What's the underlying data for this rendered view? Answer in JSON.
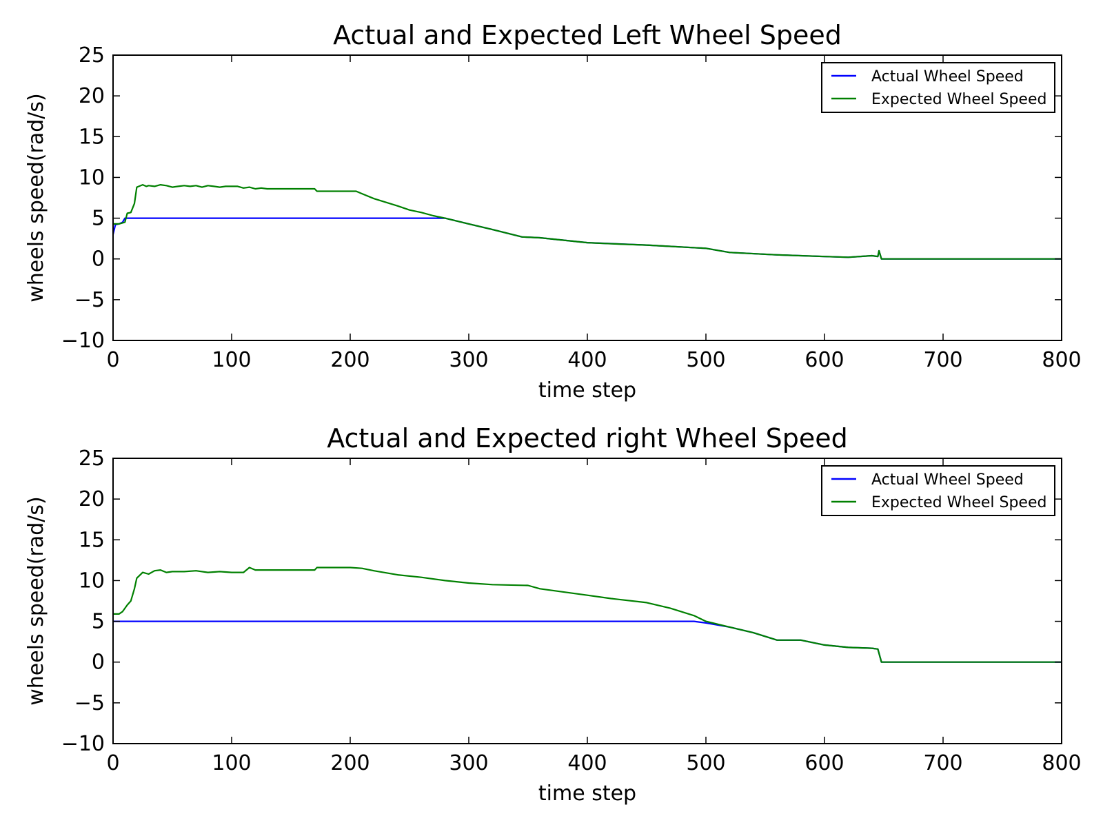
{
  "figure": {
    "background": "#ffffff"
  },
  "chart_data": [
    {
      "type": "line",
      "title": "Actual and Expected Left Wheel Speed",
      "xlabel": "time step",
      "ylabel": "wheels speed(rad/s)",
      "xlim": [
        0,
        800
      ],
      "ylim": [
        -10,
        25
      ],
      "xticks": [
        0,
        100,
        200,
        300,
        400,
        500,
        600,
        700,
        800
      ],
      "xtick_labels": [
        "0",
        "100",
        "200",
        "300",
        "400",
        "500",
        "600",
        "700",
        "800"
      ],
      "yticks": [
        -10,
        -5,
        0,
        5,
        10,
        15,
        20,
        25
      ],
      "ytick_labels": [
        "−10",
        "−5",
        "0",
        "5",
        "10",
        "15",
        "20",
        "25"
      ],
      "grid": false,
      "legend_position": "top-right",
      "series": [
        {
          "name": "Actual Wheel Speed",
          "color": "#0000ff",
          "x": [
            0,
            2,
            5,
            8,
            10,
            280,
            300,
            320,
            345,
            360,
            400,
            450,
            500,
            520,
            560,
            600,
            620,
            640,
            645,
            646,
            648,
            800
          ],
          "y": [
            3.0,
            4.2,
            4.3,
            4.5,
            5.0,
            5.0,
            4.3,
            3.6,
            2.7,
            2.6,
            2.0,
            1.7,
            1.3,
            0.8,
            0.5,
            0.3,
            0.2,
            0.4,
            0.3,
            1.0,
            0.0,
            0.0
          ]
        },
        {
          "name": "Expected Wheel Speed",
          "color": "#008000",
          "x": [
            0,
            5,
            10,
            12,
            15,
            18,
            20,
            25,
            28,
            30,
            35,
            40,
            45,
            50,
            55,
            60,
            65,
            70,
            75,
            80,
            85,
            90,
            95,
            100,
            105,
            110,
            115,
            120,
            125,
            130,
            150,
            170,
            172,
            205,
            210,
            220,
            240,
            250,
            260,
            270,
            280,
            300,
            320,
            345,
            360,
            400,
            430,
            450,
            500,
            520,
            560,
            600,
            620,
            640,
            645,
            646,
            648,
            800
          ],
          "y": [
            4.3,
            4.3,
            4.5,
            5.6,
            5.7,
            6.8,
            8.8,
            9.1,
            8.9,
            9.0,
            8.9,
            9.1,
            9.0,
            8.8,
            8.9,
            9.0,
            8.9,
            9.0,
            8.8,
            9.0,
            8.9,
            8.8,
            8.9,
            8.9,
            8.9,
            8.7,
            8.8,
            8.6,
            8.7,
            8.6,
            8.6,
            8.6,
            8.3,
            8.3,
            8.0,
            7.4,
            6.5,
            6.0,
            5.7,
            5.3,
            5.0,
            4.3,
            3.6,
            2.7,
            2.6,
            2.0,
            1.8,
            1.7,
            1.3,
            0.8,
            0.5,
            0.3,
            0.2,
            0.4,
            0.3,
            1.0,
            0.0,
            0.0
          ]
        }
      ]
    },
    {
      "type": "line",
      "title": "Actual and Expected right Wheel Speed",
      "xlabel": "time step",
      "ylabel": "wheels speed(rad/s)",
      "xlim": [
        0,
        800
      ],
      "ylim": [
        -10,
        25
      ],
      "xticks": [
        0,
        100,
        200,
        300,
        400,
        500,
        600,
        700,
        800
      ],
      "xtick_labels": [
        "0",
        "100",
        "200",
        "300",
        "400",
        "500",
        "600",
        "700",
        "800"
      ],
      "yticks": [
        -10,
        -5,
        0,
        5,
        10,
        15,
        20,
        25
      ],
      "ytick_labels": [
        "−10",
        "−5",
        "0",
        "5",
        "10",
        "15",
        "20",
        "25"
      ],
      "grid": false,
      "legend_position": "top-right",
      "series": [
        {
          "name": "Actual Wheel Speed",
          "color": "#0000ff",
          "x": [
            0,
            490,
            500,
            520,
            540,
            560,
            580,
            600,
            620,
            640,
            645,
            648,
            800
          ],
          "y": [
            5.0,
            5.0,
            4.8,
            4.3,
            3.6,
            2.7,
            2.7,
            2.1,
            1.8,
            1.7,
            1.6,
            0.0,
            0.0
          ]
        },
        {
          "name": "Expected Wheel Speed",
          "color": "#008000",
          "x": [
            0,
            5,
            8,
            12,
            15,
            18,
            20,
            25,
            30,
            35,
            40,
            45,
            50,
            60,
            70,
            80,
            90,
            100,
            110,
            115,
            120,
            170,
            172,
            200,
            210,
            220,
            240,
            260,
            280,
            300,
            320,
            350,
            360,
            400,
            420,
            450,
            470,
            490,
            500,
            520,
            540,
            560,
            580,
            600,
            620,
            640,
            645,
            648,
            800
          ],
          "y": [
            5.9,
            5.9,
            6.2,
            7.0,
            7.5,
            9.0,
            10.3,
            11.0,
            10.8,
            11.2,
            11.3,
            11.0,
            11.1,
            11.1,
            11.2,
            11.0,
            11.1,
            11.0,
            11.0,
            11.6,
            11.3,
            11.3,
            11.6,
            11.6,
            11.5,
            11.2,
            10.7,
            10.4,
            10.0,
            9.7,
            9.5,
            9.4,
            9.0,
            8.2,
            7.8,
            7.3,
            6.6,
            5.7,
            5.0,
            4.3,
            3.6,
            2.7,
            2.7,
            2.1,
            1.8,
            1.7,
            1.6,
            0.0,
            0.0
          ]
        }
      ]
    }
  ]
}
